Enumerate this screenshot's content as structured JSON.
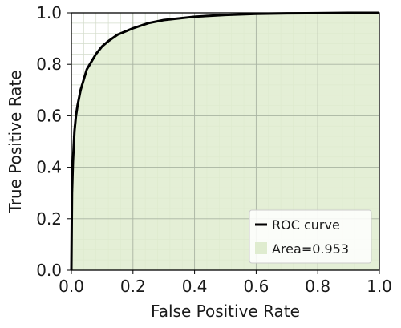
{
  "chart_data": {
    "type": "area",
    "title": "",
    "xlabel": "False Positive Rate",
    "ylabel": "True Positive Rate",
    "xlim": [
      0.0,
      1.0
    ],
    "ylim": [
      0.0,
      1.0
    ],
    "xticks": [
      "0.0",
      "0.2",
      "0.4",
      "0.6",
      "0.8",
      "1.0"
    ],
    "yticks": [
      "0.0",
      "0.2",
      "0.4",
      "0.6",
      "0.8",
      "1.0"
    ],
    "grid": true,
    "legend_position": "bottom-right",
    "legend": [
      {
        "label": "ROC curve",
        "kind": "line",
        "color": "#000000"
      },
      {
        "label": "Area=0.953",
        "kind": "fill",
        "color": "#dfeccf"
      }
    ],
    "series": [
      {
        "name": "ROC curve",
        "x": [
          0.0,
          0.002,
          0.005,
          0.01,
          0.015,
          0.02,
          0.03,
          0.04,
          0.05,
          0.06,
          0.07,
          0.08,
          0.1,
          0.12,
          0.15,
          0.2,
          0.25,
          0.3,
          0.4,
          0.5,
          0.6,
          0.7,
          0.8,
          0.9,
          1.0
        ],
        "y": [
          0.0,
          0.3,
          0.42,
          0.54,
          0.6,
          0.64,
          0.7,
          0.74,
          0.78,
          0.8,
          0.82,
          0.84,
          0.87,
          0.89,
          0.915,
          0.94,
          0.96,
          0.972,
          0.985,
          0.992,
          0.996,
          0.998,
          0.999,
          1.0,
          1.0
        ]
      }
    ],
    "colors": {
      "plot_background": "#ffffff",
      "area_fill": "#dfeccf",
      "curve": "#000000",
      "major_grid": "#a9b4a2",
      "minor_grid": "#d3dccb"
    }
  }
}
